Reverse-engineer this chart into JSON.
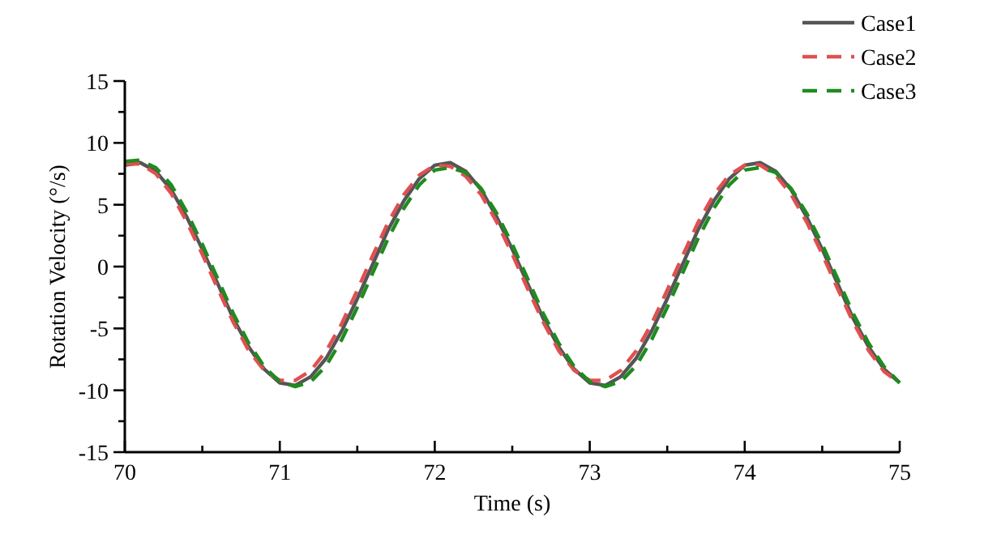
{
  "chart_data": {
    "type": "line",
    "xlabel": "Time (s)",
    "ylabel": "Rotation Velocity (°/s)",
    "x": [
      70,
      70.1,
      70.2,
      70.3,
      70.4,
      70.5,
      70.6,
      70.7,
      70.8,
      70.9,
      71,
      71.1,
      71.2,
      71.3,
      71.4,
      71.5,
      71.6,
      71.7,
      71.8,
      71.9,
      72,
      72.1,
      72.2,
      72.3,
      72.4,
      72.5,
      72.6,
      72.7,
      72.8,
      72.9,
      73,
      73.1,
      73.2,
      73.3,
      73.4,
      73.5,
      73.6,
      73.7,
      73.8,
      73.9,
      74,
      74.1,
      74.2,
      74.3,
      74.4,
      74.5,
      74.6,
      74.7,
      74.8,
      74.9,
      75
    ],
    "series": [
      {
        "name": "Case1",
        "color": "#555555",
        "line_style": "solid",
        "values": [
          8.2,
          8.4,
          7.7,
          6.2,
          4.0,
          1.4,
          -1.4,
          -4.2,
          -6.5,
          -8.3,
          -9.4,
          -9.6,
          -8.9,
          -7.4,
          -5.2,
          -2.6,
          0.2,
          3.0,
          5.3,
          7.1,
          8.2,
          8.4,
          7.7,
          6.2,
          4.0,
          1.4,
          -1.4,
          -4.2,
          -6.5,
          -8.3,
          -9.4,
          -9.6,
          -8.9,
          -7.4,
          -5.2,
          -2.6,
          0.2,
          3.0,
          5.3,
          7.1,
          8.2,
          8.4,
          7.7,
          6.2,
          4.0,
          1.4,
          -1.4,
          -4.2,
          -6.5,
          -8.3,
          -9.4
        ]
      },
      {
        "name": "Case2",
        "color": "#e05050",
        "line_style": "dashed",
        "values": [
          8.3,
          8.3,
          7.5,
          5.9,
          3.6,
          1.0,
          -1.8,
          -4.5,
          -6.8,
          -8.4,
          -9.2,
          -9.2,
          -8.4,
          -6.8,
          -4.6,
          -1.9,
          0.9,
          3.6,
          5.8,
          7.4,
          8.2,
          8.1,
          7.3,
          5.8,
          3.6,
          1.0,
          -1.8,
          -4.5,
          -6.8,
          -8.4,
          -9.2,
          -9.2,
          -8.4,
          -6.8,
          -4.6,
          -1.9,
          0.9,
          3.6,
          5.8,
          7.4,
          8.2,
          8.2,
          7.4,
          5.8,
          3.6,
          1.0,
          -1.8,
          -4.5,
          -6.8,
          -8.5,
          -9.4
        ]
      },
      {
        "name": "Case3",
        "color": "#1e8c1e",
        "line_style": "dashed",
        "values": [
          8.5,
          8.6,
          8.0,
          6.6,
          4.4,
          1.8,
          -1.0,
          -3.8,
          -6.2,
          -8.1,
          -9.3,
          -9.7,
          -9.3,
          -8.0,
          -5.9,
          -3.3,
          -0.5,
          2.3,
          4.7,
          6.6,
          7.8,
          8.0,
          7.6,
          6.3,
          4.3,
          1.8,
          -1.0,
          -3.8,
          -6.2,
          -8.1,
          -9.3,
          -9.7,
          -9.3,
          -8.0,
          -5.9,
          -3.3,
          -0.5,
          2.3,
          4.7,
          6.6,
          7.8,
          8.0,
          7.6,
          6.3,
          4.3,
          1.8,
          -1.0,
          -3.8,
          -6.2,
          -8.1,
          -9.4
        ]
      }
    ],
    "xlim": [
      70,
      75
    ],
    "xticks": [
      70,
      {
        "value": 70.5,
        "label": null
      },
      71,
      {
        "value": 71.5,
        "label": null
      },
      72,
      {
        "value": 72.5,
        "label": null
      },
      73,
      {
        "value": 73.5,
        "label": null
      },
      74,
      {
        "value": 74.5,
        "label": null
      },
      75
    ],
    "ylim": [
      -15,
      15
    ],
    "yticks": [
      -15,
      {
        "value": -12.5,
        "label": null
      },
      -10,
      {
        "value": -7.5,
        "label": null
      },
      -5,
      {
        "value": -2.5,
        "label": null
      },
      0,
      {
        "value": 2.5,
        "label": null
      },
      5,
      {
        "value": 7.5,
        "label": null
      },
      10,
      {
        "value": 12.5,
        "label": null
      },
      15
    ],
    "grid": false,
    "legend": "top right"
  }
}
